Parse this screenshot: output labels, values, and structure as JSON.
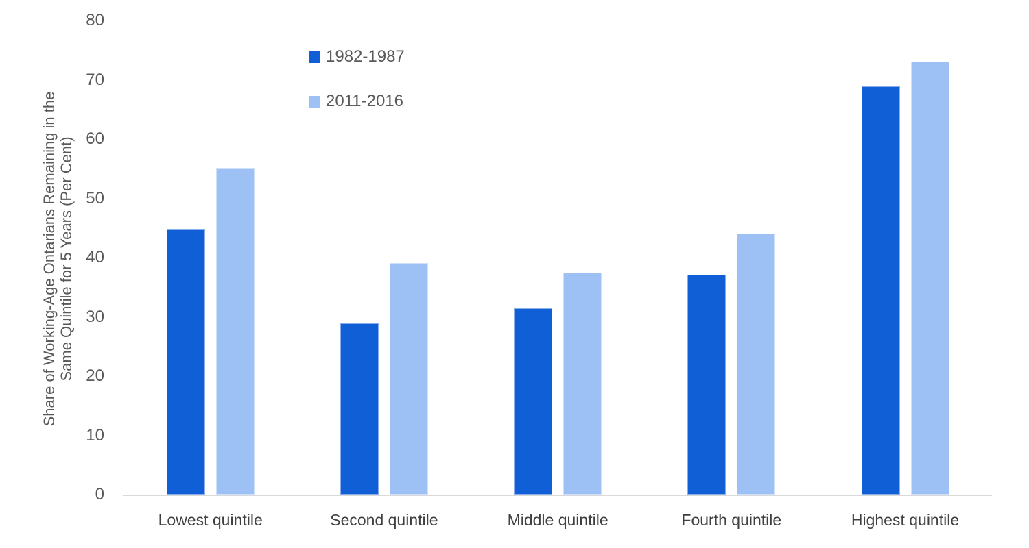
{
  "chart_data": {
    "type": "bar",
    "title": "",
    "categories": [
      "Lowest quintile",
      "Second quintile",
      "Middle quintile",
      "Fourth quintile",
      "Highest quintile"
    ],
    "series": [
      {
        "name": "1982-1987",
        "color": "#115FD6",
        "values": [
          44.7,
          28.9,
          31.4,
          37.1,
          68.9
        ]
      },
      {
        "name": "2011-2016",
        "color": "#9DC1F5",
        "values": [
          55.1,
          39.1,
          37.5,
          44.1,
          73.1
        ]
      }
    ],
    "ylabel": "Share of Working-Age Ontarians Remaining in the Same Quintile for 5 Years (Per Cent)",
    "ylabel_lines": [
      "Share of Working-Age Ontarians Remaining in the",
      "Same Quintile for 5 Years (Per Cent)"
    ],
    "xlabel": "",
    "ylim": [
      0,
      80
    ],
    "yticks": [
      0,
      10,
      20,
      30,
      40,
      50,
      60,
      70,
      80
    ],
    "grid": false,
    "legend_position": "top-center",
    "colors": {
      "axis_line": "#D9D9D9",
      "tick_text": "#595959",
      "category_text": "#404040",
      "legend_text": "#595959",
      "background": "#FFFFFF"
    }
  }
}
